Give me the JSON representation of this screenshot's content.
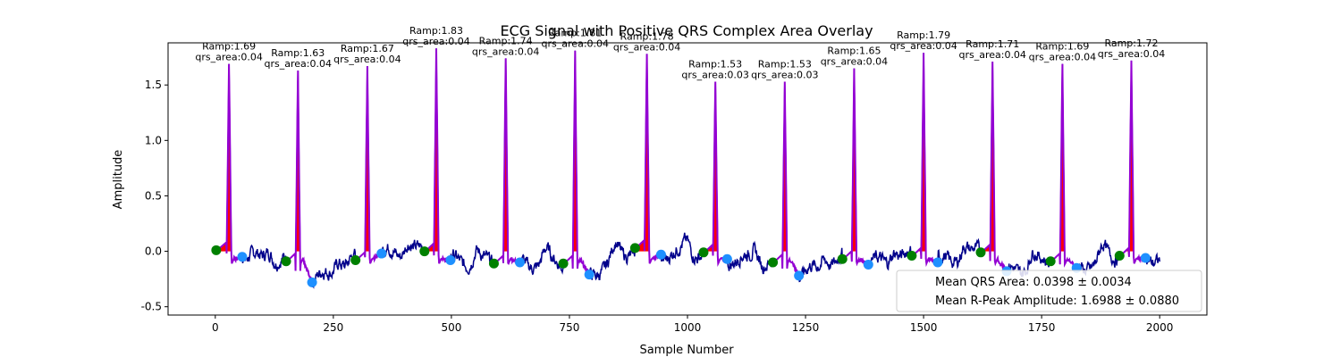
{
  "chart_data": {
    "type": "line",
    "title": "ECG Signal with Positive QRS Complex Area Overlay",
    "xlabel": "Sample Number",
    "ylabel": "Amplitude",
    "xlim": [
      -100,
      2100
    ],
    "ylim": [
      -0.575,
      1.88
    ],
    "xticks": [
      0,
      250,
      500,
      750,
      1000,
      1250,
      1500,
      1750,
      2000
    ],
    "yticks": [
      -0.5,
      0.0,
      0.5,
      1.0,
      1.5
    ],
    "colors": {
      "signal": "#00008b",
      "qrs_segment": "#9400d3",
      "qrs_fill": "#ff0000",
      "onset_marker": "#008000",
      "offset_marker": "#1e90ff"
    },
    "beats": [
      {
        "r_peak": 29,
        "ramp": 1.69,
        "ramp_label": "Ramp:1.69",
        "area_label": "qrs_area:0.04",
        "onset": 2,
        "onset_amp": 0.01,
        "offset": 57,
        "offset_amp": -0.05
      },
      {
        "r_peak": 175,
        "ramp": 1.63,
        "ramp_label": "Ramp:1.63",
        "area_label": "qrs_area:0.04",
        "onset": 150,
        "onset_amp": -0.09,
        "offset": 205,
        "offset_amp": -0.28
      },
      {
        "r_peak": 322,
        "ramp": 1.67,
        "ramp_label": "Ramp:1.67",
        "area_label": "qrs_area:0.04",
        "onset": 297,
        "onset_amp": -0.08,
        "offset": 352,
        "offset_amp": -0.02
      },
      {
        "r_peak": 468,
        "ramp": 1.83,
        "ramp_label": "Ramp:1.83",
        "area_label": "qrs_area:0.04",
        "onset": 443,
        "onset_amp": 0.0,
        "offset": 498,
        "offset_amp": -0.08
      },
      {
        "r_peak": 615,
        "ramp": 1.74,
        "ramp_label": "Ramp:1.74",
        "area_label": "qrs_area:0.04",
        "onset": 590,
        "onset_amp": -0.11,
        "offset": 645,
        "offset_amp": -0.1
      },
      {
        "r_peak": 762,
        "ramp": 1.81,
        "ramp_label": "Ramp:1.81",
        "area_label": "qrs_area:0.04",
        "onset": 737,
        "onset_amp": -0.11,
        "offset": 792,
        "offset_amp": -0.21
      },
      {
        "r_peak": 914,
        "ramp": 1.78,
        "ramp_label": "Ramp:1.78",
        "area_label": "qrs_area:0.04",
        "onset": 889,
        "onset_amp": 0.03,
        "offset": 944,
        "offset_amp": -0.03
      },
      {
        "r_peak": 1059,
        "ramp": 1.53,
        "ramp_label": "Ramp:1.53",
        "area_label": "qrs_area:0.03",
        "onset": 1034,
        "onset_amp": -0.01,
        "offset": 1084,
        "offset_amp": -0.07
      },
      {
        "r_peak": 1206,
        "ramp": 1.53,
        "ramp_label": "Ramp:1.53",
        "area_label": "qrs_area:0.03",
        "onset": 1181,
        "onset_amp": -0.1,
        "offset": 1236,
        "offset_amp": -0.22
      },
      {
        "r_peak": 1353,
        "ramp": 1.65,
        "ramp_label": "Ramp:1.65",
        "area_label": "qrs_area:0.04",
        "onset": 1328,
        "onset_amp": -0.07,
        "offset": 1383,
        "offset_amp": -0.12
      },
      {
        "r_peak": 1500,
        "ramp": 1.79,
        "ramp_label": "Ramp:1.79",
        "area_label": "qrs_area:0.04",
        "onset": 1475,
        "onset_amp": -0.04,
        "offset": 1530,
        "offset_amp": -0.1
      },
      {
        "r_peak": 1646,
        "ramp": 1.71,
        "ramp_label": "Ramp:1.71",
        "area_label": "qrs_area:0.04",
        "onset": 1621,
        "onset_amp": -0.01,
        "offset": 1676,
        "offset_amp": -0.18
      },
      {
        "r_peak": 1794,
        "ramp": 1.69,
        "ramp_label": "Ramp:1.69",
        "area_label": "qrs_area:0.04",
        "onset": 1769,
        "onset_amp": -0.09,
        "offset": 1824,
        "offset_amp": -0.15
      },
      {
        "r_peak": 1940,
        "ramp": 1.72,
        "ramp_label": "Ramp:1.72",
        "area_label": "qrs_area:0.04",
        "onset": 1915,
        "onset_amp": -0.04,
        "offset": 1970,
        "offset_amp": -0.06
      }
    ],
    "legend": {
      "placement": "lower-right",
      "entries": [
        "Mean QRS Area: 0.0398 ± 0.0034",
        "Mean R-Peak Amplitude: 1.6988 ± 0.0880"
      ]
    }
  }
}
